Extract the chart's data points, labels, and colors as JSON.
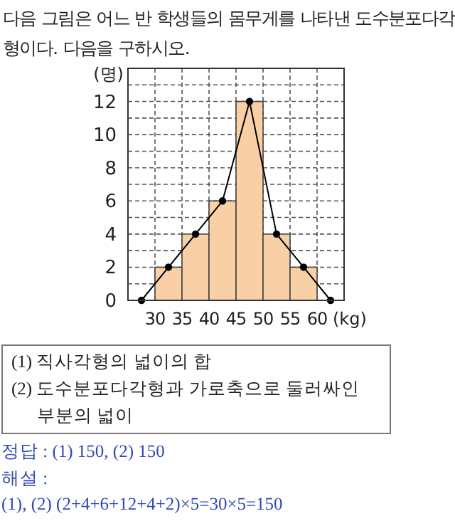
{
  "chart_data": {
    "type": "histogram",
    "title": "다음 그림은 어느 반 학생들의 몸무게를 나타낸 도수분포다각형이다. 다음을 구하시오.",
    "xlabel": "(kg)",
    "ylabel": "(명)",
    "bins": [
      30,
      35,
      40,
      45,
      50,
      55,
      60
    ],
    "values": [
      2,
      4,
      6,
      12,
      4,
      2
    ],
    "color": "#f9cfa6",
    "xlim": [
      25,
      65
    ],
    "ylim": [
      0,
      14
    ],
    "xticks": [
      30,
      35,
      40,
      45,
      50,
      55,
      60
    ],
    "yticks": [
      0,
      {
        "value": 1,
        "label": null
      },
      2,
      {
        "value": 3,
        "label": null
      },
      4,
      {
        "value": 5,
        "label": null
      },
      6,
      {
        "value": 7,
        "label": null
      },
      8,
      {
        "value": 9,
        "label": null
      },
      10,
      {
        "value": 11,
        "label": null
      },
      12,
      {
        "value": 13,
        "label": null
      }
    ],
    "grid": true,
    "series": [
      {
        "type": "line",
        "x": [
          27.5,
          32.5,
          37.5,
          42.5,
          47.5,
          52.5,
          57.5,
          62.5
        ],
        "values": [
          0,
          2,
          4,
          6,
          12,
          4,
          2,
          0
        ],
        "color": "#000000",
        "marker": "circle"
      }
    ],
    "annotations": [
      "(1) 직사각형의 넓이의 합",
      "(2) 도수분포다각형과 가로축으로 둘러싸인 부분의 넓이",
      "정답 : (1) 150, (2) 150",
      "해설 :",
      "(1), (2) (2+4+6+12+4+2)×5=30×5=150"
    ]
  }
}
